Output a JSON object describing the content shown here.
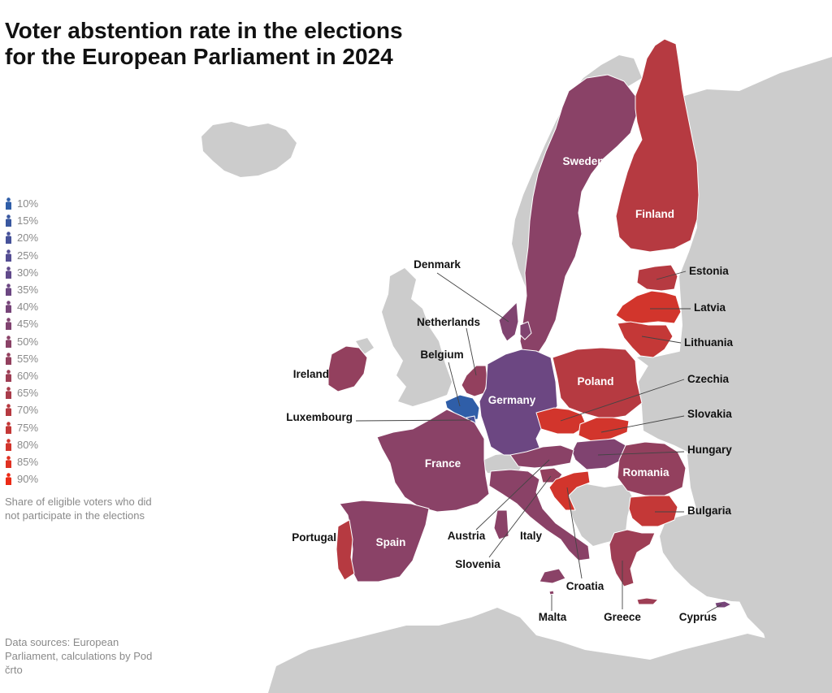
{
  "title": {
    "line1": "Voter abstention rate in the elections",
    "line2": "for the European Parliament in 2024"
  },
  "legend": {
    "items": [
      {
        "label": "10%",
        "color": "#2f5ea8"
      },
      {
        "label": "15%",
        "color": "#3a58a0"
      },
      {
        "label": "20%",
        "color": "#46529a"
      },
      {
        "label": "25%",
        "color": "#544d93"
      },
      {
        "label": "30%",
        "color": "#614a8b"
      },
      {
        "label": "35%",
        "color": "#6c4782"
      },
      {
        "label": "40%",
        "color": "#774579"
      },
      {
        "label": "45%",
        "color": "#804370"
      },
      {
        "label": "50%",
        "color": "#8a4267"
      },
      {
        "label": "55%",
        "color": "#93405e"
      },
      {
        "label": "60%",
        "color": "#9e3e55"
      },
      {
        "label": "65%",
        "color": "#a93c4b"
      },
      {
        "label": "70%",
        "color": "#b63a41"
      },
      {
        "label": "75%",
        "color": "#c43837"
      },
      {
        "label": "80%",
        "color": "#d2352c"
      },
      {
        "label": "85%",
        "color": "#e03122"
      },
      {
        "label": "90%",
        "color": "#ec2a16"
      }
    ],
    "caption": "Share of eligible voters who did not participate in the elections"
  },
  "sources": "Data sources: European Parliament, calculations by Pod črto",
  "map_colors": {
    "non_eu_land": "#cccccc",
    "sea": "#ffffff",
    "border": "#ffffff"
  },
  "countries": [
    {
      "name": "Sweden",
      "color": "#8a4267",
      "label_color": "#ffffff"
    },
    {
      "name": "Finland",
      "color": "#b63a41",
      "label_color": "#ffffff"
    },
    {
      "name": "Estonia",
      "color": "#b63a41",
      "label_color": "#111111"
    },
    {
      "name": "Latvia",
      "color": "#d2352c",
      "label_color": "#111111"
    },
    {
      "name": "Lithuania",
      "color": "#c43837",
      "label_color": "#111111"
    },
    {
      "name": "Denmark",
      "color": "#804370",
      "label_color": "#111111"
    },
    {
      "name": "Netherlands",
      "color": "#93405e",
      "label_color": "#111111"
    },
    {
      "name": "Belgium",
      "color": "#2f5ea8",
      "label_color": "#111111"
    },
    {
      "name": "Luxembourg",
      "color": "#46529a",
      "label_color": "#111111"
    },
    {
      "name": "Ireland",
      "color": "#93405e",
      "label_color": "#111111"
    },
    {
      "name": "Germany",
      "color": "#6c4782",
      "label_color": "#ffffff"
    },
    {
      "name": "Poland",
      "color": "#b63a41",
      "label_color": "#ffffff"
    },
    {
      "name": "Czechia",
      "color": "#d2352c",
      "label_color": "#111111"
    },
    {
      "name": "Slovakia",
      "color": "#d2352c",
      "label_color": "#111111"
    },
    {
      "name": "Hungary",
      "color": "#804370",
      "label_color": "#111111"
    },
    {
      "name": "Romania",
      "color": "#93405e",
      "label_color": "#ffffff"
    },
    {
      "name": "Bulgaria",
      "color": "#c43837",
      "label_color": "#111111"
    },
    {
      "name": "France",
      "color": "#8a4267",
      "label_color": "#ffffff"
    },
    {
      "name": "Spain",
      "color": "#8a4267",
      "label_color": "#ffffff"
    },
    {
      "name": "Portugal",
      "color": "#b63a41",
      "label_color": "#111111"
    },
    {
      "name": "Austria",
      "color": "#8a4267",
      "label_color": "#111111"
    },
    {
      "name": "Slovenia",
      "color": "#93405e",
      "label_color": "#111111"
    },
    {
      "name": "Croatia",
      "color": "#d2352c",
      "label_color": "#111111"
    },
    {
      "name": "Italy",
      "color": "#8a4267",
      "label_color": "#111111"
    },
    {
      "name": "Malta",
      "color": "#8a4267",
      "label_color": "#111111"
    },
    {
      "name": "Greece",
      "color": "#9e3e55",
      "label_color": "#111111"
    },
    {
      "name": "Cyprus",
      "color": "#774579",
      "label_color": "#111111"
    }
  ]
}
